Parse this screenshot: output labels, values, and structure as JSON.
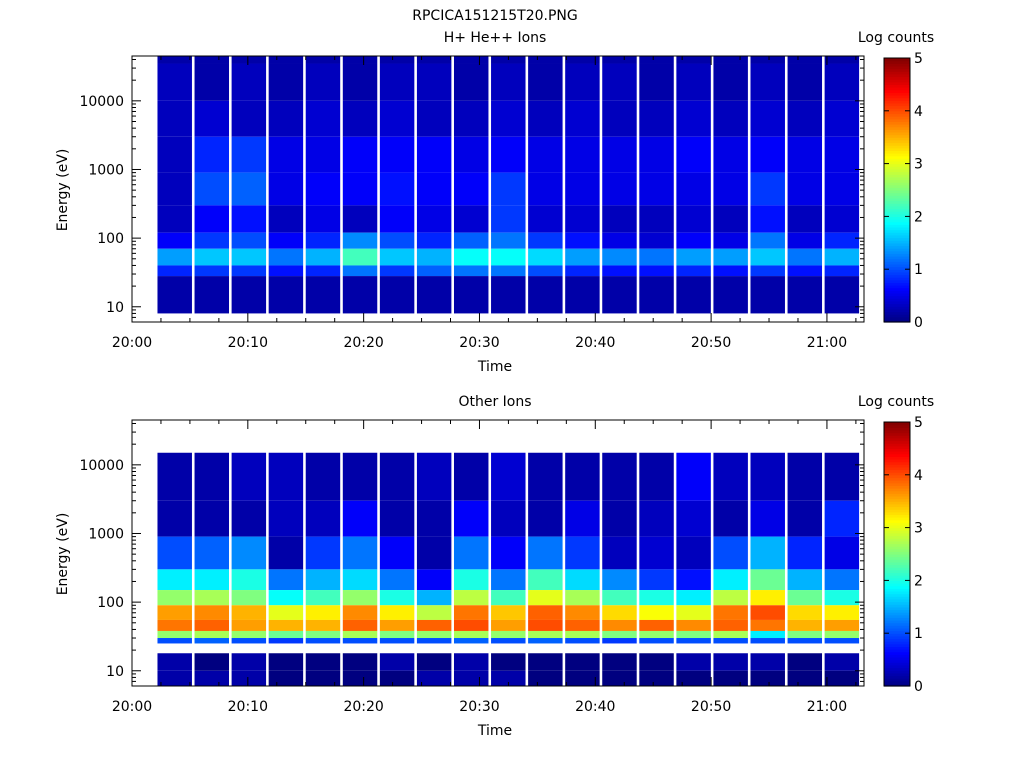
{
  "figure": {
    "title": "RPCICA151215T20.PNG"
  },
  "panels": [
    {
      "title": "H+ He++ Ions",
      "xlabel": "Time",
      "ylabel": "Energy (eV)",
      "colorbar_label": "Log counts"
    },
    {
      "title": "Other Ions",
      "xlabel": "Time",
      "ylabel": "Energy (eV)",
      "colorbar_label": "Log counts"
    }
  ],
  "chart_data": [
    {
      "type": "heatmap",
      "title": "H+ He++ Ions",
      "xlabel": "Time",
      "ylabel": "Energy (eV)",
      "x_ticks": [
        "20:00",
        "20:10",
        "20:20",
        "20:30",
        "20:40",
        "20:50",
        "21:00"
      ],
      "x_tick_minutes": [
        0,
        10,
        20,
        30,
        40,
        50,
        60
      ],
      "xlim_minutes": [
        0,
        63.2
      ],
      "y_scale": "log",
      "ylim": [
        6,
        45000
      ],
      "y_ticks": [
        10,
        100,
        1000,
        10000
      ],
      "y_tick_labels": [
        "10",
        "100",
        "1000",
        "10000"
      ],
      "colorbar": {
        "label": "Log counts",
        "range": [
          0,
          5
        ],
        "ticks": [
          "0",
          "1",
          "2",
          "3",
          "4",
          "5"
        ],
        "colormap": "jet"
      },
      "time_bin_starts_minutes": [
        2.2,
        5.4,
        8.6,
        11.8,
        15.0,
        18.2,
        21.4,
        24.6,
        27.8,
        31.0,
        34.2,
        37.4,
        40.6,
        43.8,
        47.0,
        50.2,
        53.4,
        56.6,
        59.8
      ],
      "energy_bands": [
        {
          "range_eV": [
            35000,
            45000
          ],
          "log_counts": [
            0.2,
            0.2,
            0.2,
            0.2,
            0.2,
            0.2,
            0.2,
            0.2,
            0.2,
            0.2,
            0.2,
            0.2,
            0.2,
            0.2,
            0.2,
            0.2,
            0.2,
            0.2,
            0.2
          ]
        },
        {
          "range_eV": [
            10000,
            35000
          ],
          "log_counts": [
            0.3,
            0.2,
            0.3,
            0.2,
            0.3,
            0.2,
            0.3,
            0.3,
            0.2,
            0.3,
            0.2,
            0.3,
            0.3,
            0.2,
            0.3,
            0.2,
            0.3,
            0.2,
            0.3
          ]
        },
        {
          "range_eV": [
            3000,
            10000
          ],
          "log_counts": [
            0.3,
            0.4,
            0.3,
            0.3,
            0.4,
            0.3,
            0.4,
            0.3,
            0.3,
            0.4,
            0.3,
            0.4,
            0.3,
            0.3,
            0.4,
            0.3,
            0.4,
            0.3,
            0.4
          ]
        },
        {
          "range_eV": [
            900,
            3000
          ],
          "log_counts": [
            0.3,
            0.8,
            0.9,
            0.5,
            0.5,
            0.6,
            0.6,
            0.6,
            0.5,
            0.6,
            0.5,
            0.5,
            0.5,
            0.5,
            0.6,
            0.5,
            0.6,
            0.5,
            0.5
          ]
        },
        {
          "range_eV": [
            300,
            900
          ],
          "log_counts": [
            0.3,
            1.0,
            1.1,
            0.5,
            0.6,
            0.6,
            0.7,
            0.6,
            0.6,
            0.9,
            0.5,
            0.5,
            0.5,
            0.5,
            0.5,
            0.5,
            0.9,
            0.5,
            0.5
          ]
        },
        {
          "range_eV": [
            120,
            300
          ],
          "log_counts": [
            0.3,
            0.6,
            0.7,
            0.3,
            0.5,
            0.3,
            0.6,
            0.5,
            0.4,
            0.9,
            0.4,
            0.4,
            0.3,
            0.3,
            0.4,
            0.3,
            0.7,
            0.3,
            0.4
          ]
        },
        {
          "range_eV": [
            70,
            120
          ],
          "log_counts": [
            0.6,
            0.9,
            1.0,
            0.6,
            0.8,
            1.3,
            1.0,
            0.8,
            1.1,
            1.2,
            0.9,
            0.7,
            0.5,
            0.4,
            0.6,
            0.5,
            1.2,
            0.5,
            0.8
          ]
        },
        {
          "range_eV": [
            40,
            70
          ],
          "log_counts": [
            1.4,
            1.6,
            1.6,
            1.2,
            1.5,
            2.2,
            1.6,
            1.5,
            1.9,
            1.9,
            1.7,
            1.4,
            1.3,
            1.2,
            1.4,
            1.4,
            1.6,
            1.2,
            1.5
          ]
        },
        {
          "range_eV": [
            28,
            40
          ],
          "log_counts": [
            0.8,
            0.9,
            0.9,
            0.7,
            0.8,
            1.2,
            0.9,
            1.1,
            1.2,
            1.2,
            1.0,
            0.8,
            0.7,
            0.7,
            0.8,
            0.7,
            0.9,
            0.7,
            0.8
          ]
        },
        {
          "range_eV": [
            8,
            28
          ],
          "log_counts": [
            0.2,
            0.2,
            0.2,
            0.2,
            0.2,
            0.2,
            0.2,
            0.2,
            0.2,
            0.2,
            0.2,
            0.2,
            0.2,
            0.2,
            0.2,
            0.2,
            0.2,
            0.2,
            0.2
          ]
        }
      ]
    },
    {
      "type": "heatmap",
      "title": "Other Ions",
      "xlabel": "Time",
      "ylabel": "Energy (eV)",
      "x_ticks": [
        "20:00",
        "20:10",
        "20:20",
        "20:30",
        "20:40",
        "20:50",
        "21:00"
      ],
      "x_tick_minutes": [
        0,
        10,
        20,
        30,
        40,
        50,
        60
      ],
      "xlim_minutes": [
        0,
        63.2
      ],
      "y_scale": "log",
      "ylim": [
        6,
        45000
      ],
      "y_ticks": [
        10,
        100,
        1000,
        10000
      ],
      "y_tick_labels": [
        "10",
        "100",
        "1000",
        "10000"
      ],
      "colorbar": {
        "label": "Log counts",
        "range": [
          0,
          5
        ],
        "ticks": [
          "0",
          "1",
          "2",
          "3",
          "4",
          "5"
        ],
        "colormap": "jet"
      },
      "time_bin_starts_minutes": [
        2.2,
        5.4,
        8.6,
        11.8,
        15.0,
        18.2,
        21.4,
        24.6,
        27.8,
        31.0,
        34.2,
        37.4,
        40.6,
        43.8,
        47.0,
        50.2,
        53.4,
        56.6,
        59.8
      ],
      "energy_bands": [
        {
          "range_eV": [
            3000,
            15000
          ],
          "log_counts": [
            0.2,
            0.2,
            0.3,
            0.3,
            0.2,
            0.2,
            0.2,
            0.3,
            0.2,
            0.4,
            0.2,
            0.2,
            0.2,
            0.2,
            0.6,
            0.3,
            0.3,
            0.2,
            0.2
          ]
        },
        {
          "range_eV": [
            900,
            3000
          ],
          "log_counts": [
            0.2,
            0.2,
            0.2,
            0.3,
            0.3,
            0.6,
            0.2,
            0.2,
            0.6,
            0.3,
            0.2,
            0.5,
            0.2,
            0.3,
            0.4,
            0.2,
            0.5,
            0.2,
            0.8
          ]
        },
        {
          "range_eV": [
            300,
            900
          ],
          "log_counts": [
            1.0,
            1.1,
            1.3,
            0.2,
            0.9,
            1.2,
            0.6,
            0.2,
            1.2,
            0.6,
            1.2,
            0.9,
            0.3,
            0.4,
            0.3,
            1.0,
            1.5,
            0.8,
            0.5
          ]
        },
        {
          "range_eV": [
            150,
            300
          ],
          "log_counts": [
            1.8,
            1.8,
            2.0,
            1.2,
            1.5,
            1.7,
            1.2,
            0.6,
            2.0,
            1.2,
            2.2,
            1.7,
            1.3,
            0.9,
            0.7,
            1.8,
            2.4,
            1.5,
            1.2
          ]
        },
        {
          "range_eV": [
            90,
            150
          ],
          "log_counts": [
            2.6,
            2.7,
            2.5,
            1.9,
            2.2,
            2.6,
            2.0,
            1.5,
            2.8,
            2.2,
            3.0,
            2.7,
            2.2,
            2.0,
            1.8,
            2.8,
            3.2,
            2.4,
            2.0
          ]
        },
        {
          "range_eV": [
            55,
            90
          ],
          "log_counts": [
            3.6,
            3.7,
            3.5,
            3.0,
            3.2,
            3.7,
            3.2,
            2.8,
            3.8,
            3.4,
            3.9,
            3.7,
            3.3,
            3.1,
            3.0,
            3.8,
            4.0,
            3.3,
            3.2
          ]
        },
        {
          "range_eV": [
            38,
            55
          ],
          "log_counts": [
            3.8,
            3.9,
            3.6,
            3.5,
            3.5,
            3.9,
            3.6,
            3.9,
            4.0,
            3.6,
            4.0,
            3.9,
            3.7,
            3.9,
            3.7,
            3.9,
            3.8,
            3.5,
            3.6
          ]
        },
        {
          "range_eV": [
            30,
            38
          ],
          "log_counts": [
            2.6,
            2.7,
            2.6,
            2.4,
            2.5,
            2.7,
            2.5,
            2.6,
            2.7,
            2.6,
            2.7,
            2.7,
            2.5,
            2.6,
            2.5,
            2.7,
            1.8,
            2.5,
            2.6
          ]
        },
        {
          "range_eV": [
            25,
            30
          ],
          "log_counts": [
            1.0,
            1.1,
            1.0,
            0.9,
            1.0,
            1.0,
            1.0,
            1.0,
            1.1,
            1.0,
            1.1,
            1.0,
            0.9,
            1.0,
            1.0,
            1.0,
            1.0,
            1.0,
            1.0
          ]
        },
        {
          "range_eV": [
            10,
            18
          ],
          "log_counts": [
            0.2,
            0.0,
            0.2,
            0.0,
            0.0,
            0.0,
            0.2,
            0.0,
            0.2,
            0.0,
            0.0,
            0.0,
            0.0,
            0.0,
            0.2,
            0.2,
            0.2,
            0.0,
            0.2
          ]
        },
        {
          "range_eV": [
            6,
            10
          ],
          "log_counts": [
            0.2,
            0.2,
            0.2,
            0.0,
            0.0,
            0.0,
            0.0,
            0.2,
            0.2,
            0.2,
            0.0,
            0.0,
            0.0,
            0.0,
            0.0,
            0.0,
            0.0,
            0.0,
            0.0
          ]
        }
      ]
    }
  ]
}
